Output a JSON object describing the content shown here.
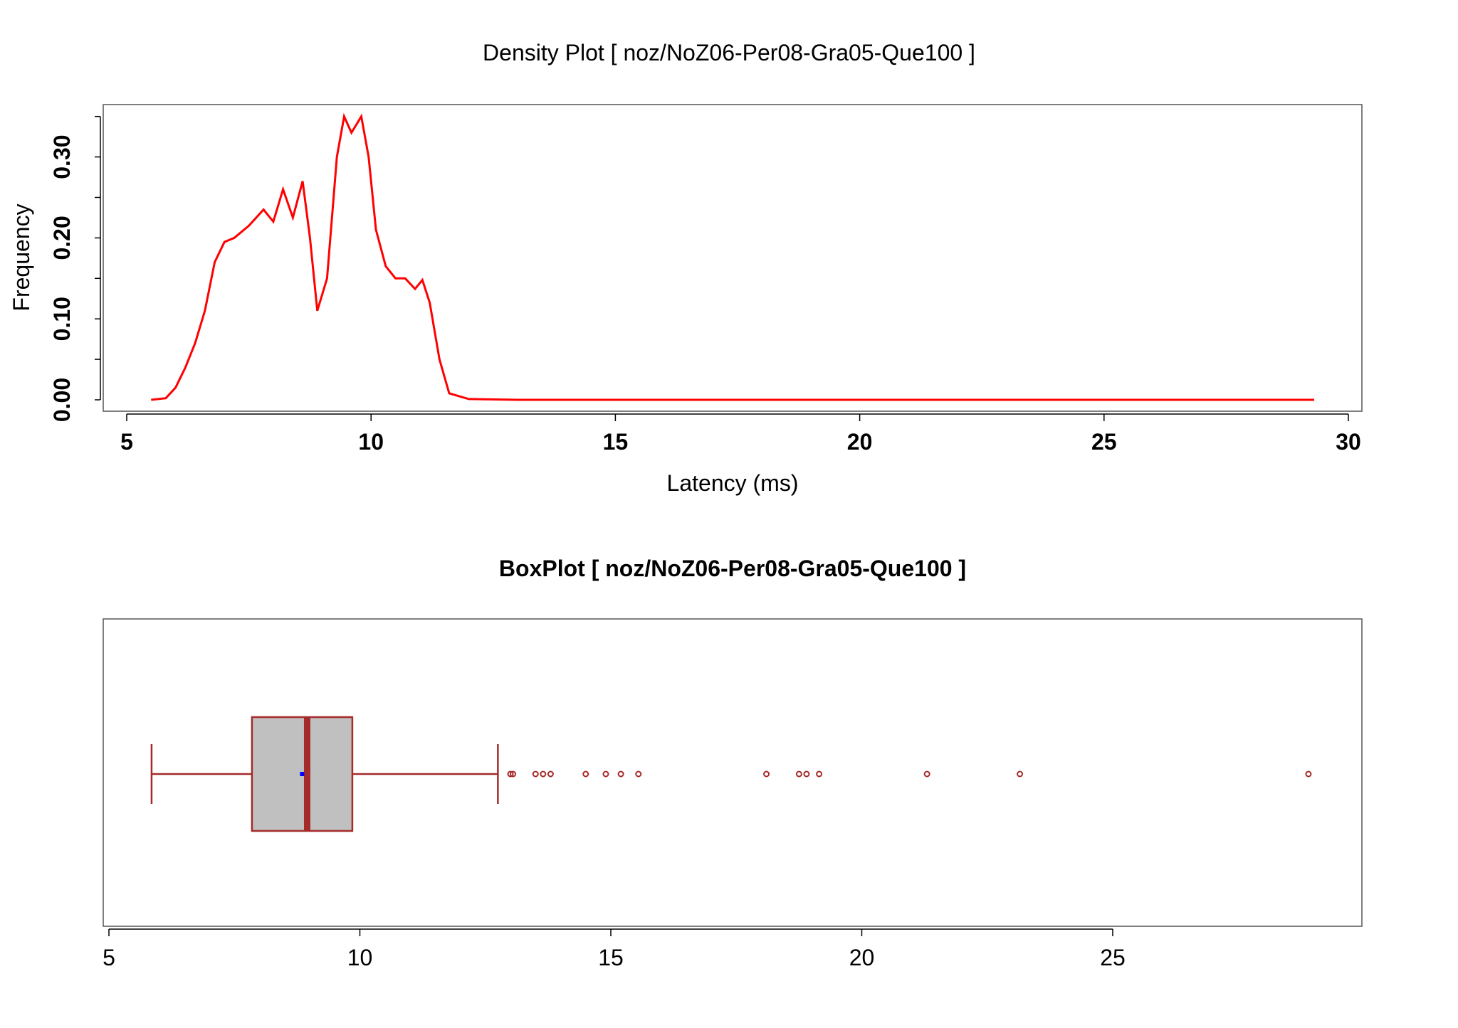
{
  "chart_data": [
    {
      "type": "line",
      "title": "Density Plot [ noz/NoZ06-Per08-Gra05-Que100 ]",
      "xlabel": "Latency (ms)",
      "ylabel": "Frequency",
      "xlim": [
        5,
        30
      ],
      "ylim": [
        0,
        0.35
      ],
      "xticks": [
        "5",
        "10",
        "15",
        "20",
        "25",
        "30"
      ],
      "yticks": [
        "0.00",
        "0.10",
        "0.20",
        "0.30"
      ],
      "line_color": "#ff0000",
      "series": [
        {
          "x": [
            5.5,
            5.8,
            6.0,
            6.2,
            6.4,
            6.6,
            6.8,
            7.0,
            7.2,
            7.5,
            7.8,
            8.0,
            8.2,
            8.4,
            8.6,
            8.75,
            8.9,
            9.1,
            9.3,
            9.45,
            9.6,
            9.8,
            9.95,
            10.1,
            10.3,
            10.5,
            10.7,
            10.9,
            11.05,
            11.2,
            11.4,
            11.6,
            12.0,
            13.0,
            15.0,
            20.0,
            25.0,
            29.3
          ],
          "y": [
            0.0,
            0.002,
            0.015,
            0.04,
            0.07,
            0.11,
            0.17,
            0.195,
            0.2,
            0.215,
            0.235,
            0.22,
            0.26,
            0.225,
            0.27,
            0.2,
            0.11,
            0.15,
            0.3,
            0.35,
            0.33,
            0.35,
            0.3,
            0.21,
            0.165,
            0.15,
            0.15,
            0.137,
            0.148,
            0.12,
            0.05,
            0.008,
            0.001,
            0.0,
            0.0,
            0.0,
            0.0,
            0.0
          ]
        }
      ]
    },
    {
      "type": "box",
      "title": "BoxPlot [ noz/NoZ06-Per08-Gra05-Que100 ]",
      "xlim": [
        5,
        30
      ],
      "xticks": [
        "5",
        "10",
        "15",
        "20",
        "25"
      ],
      "box_fill": "#c0c0c0",
      "box_stroke": "#a52a2a",
      "mean_color": "#0000ff",
      "whisker_low": 5.85,
      "q1": 7.85,
      "median": 8.95,
      "q3": 9.85,
      "whisker_high": 12.75,
      "mean": 8.85,
      "outliers": [
        13.0,
        13.05,
        13.5,
        13.65,
        13.8,
        14.5,
        14.9,
        15.2,
        15.55,
        18.1,
        18.75,
        18.9,
        19.15,
        21.3,
        23.15,
        28.9
      ]
    }
  ]
}
